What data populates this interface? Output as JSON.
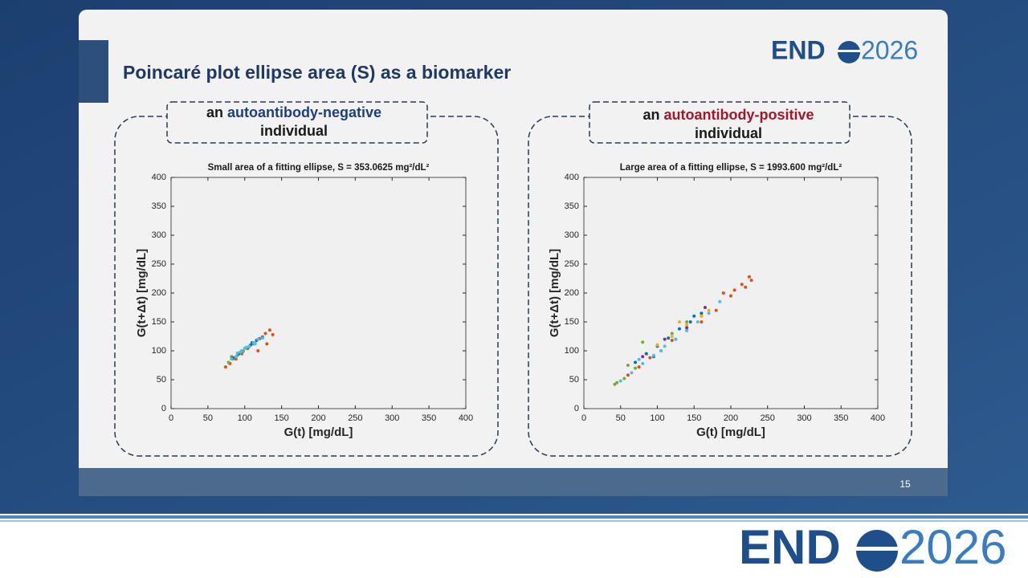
{
  "slide": {
    "title": "Poincaré plot ellipse area (S) as a biomarker",
    "page_number": "15",
    "logo_left": "END",
    "logo_right": "2026"
  },
  "panels": [
    {
      "prefix": "an",
      "highlight": "autoantibody-negative",
      "suffix": "individual",
      "highlight_color": "#1f3f7a"
    },
    {
      "prefix": "an",
      "highlight": "autoantibody-positive",
      "suffix": "individual",
      "highlight_color": "#a3172a"
    }
  ],
  "chart_data": [
    {
      "type": "scatter",
      "title": "Small area of a fitting ellipse, S = 353.0625 mg²/dL²",
      "x_label": "G(t) [mg/dL]",
      "y_label": "G(t+Δt) [mg/dL]",
      "xlim": [
        0,
        400
      ],
      "ylim": [
        0,
        400
      ],
      "xticks": [
        0,
        50,
        100,
        150,
        200,
        250,
        300,
        350,
        400
      ],
      "yticks": [
        0,
        50,
        100,
        150,
        200,
        250,
        300,
        350,
        400
      ],
      "grid": false,
      "series": [
        {
          "color": "#d95319",
          "x": [
            74,
            80,
            88,
            96,
            104,
            112,
            120,
            128,
            134,
            138,
            130,
            118
          ],
          "values": [
            72,
            78,
            86,
            95,
            104,
            112,
            121,
            130,
            136,
            128,
            112,
            100
          ]
        },
        {
          "color": "#77ac30",
          "x": [
            78,
            84,
            90,
            98,
            106,
            114,
            82,
            94
          ],
          "values": [
            80,
            86,
            92,
            99,
            107,
            113,
            90,
            96
          ]
        },
        {
          "color": "#0072bd",
          "x": [
            84,
            92,
            100,
            108,
            116,
            124,
            96,
            110
          ],
          "values": [
            88,
            95,
            104,
            110,
            118,
            124,
            100,
            114
          ]
        },
        {
          "color": "#4dbeee",
          "x": [
            82,
            88,
            94,
            100,
            106,
            112,
            118,
            124,
            90,
            102,
            114,
            96
          ],
          "values": [
            86,
            90,
            98,
            104,
            108,
            114,
            120,
            122,
            96,
            106,
            112,
            100
          ]
        }
      ]
    },
    {
      "type": "scatter",
      "title": "Large area of a fitting ellipse, S = 1993.600 mg²/dL²",
      "x_label": "G(t) [mg/dL]",
      "y_label": "G(t+Δt) [mg/dL]",
      "xlim": [
        0,
        400
      ],
      "ylim": [
        0,
        400
      ],
      "xticks": [
        0,
        50,
        100,
        150,
        200,
        250,
        300,
        350,
        400
      ],
      "yticks": [
        0,
        50,
        100,
        150,
        200,
        250,
        300,
        350,
        400
      ],
      "grid": false,
      "series": [
        {
          "color": "#d95319",
          "x": [
            60,
            75,
            90,
            105,
            120,
            140,
            160,
            180,
            200,
            215,
            225,
            228,
            220,
            205,
            190
          ],
          "values": [
            58,
            72,
            88,
            100,
            118,
            135,
            150,
            170,
            195,
            215,
            228,
            222,
            210,
            205,
            200
          ]
        },
        {
          "color": "#77ac30",
          "x": [
            42,
            45,
            55,
            70,
            85,
            100,
            120,
            140,
            160,
            60,
            80
          ],
          "values": [
            42,
            45,
            52,
            70,
            95,
            110,
            130,
            150,
            160,
            75,
            115
          ]
        },
        {
          "color": "#0072bd",
          "x": [
            70,
            85,
            100,
            115,
            130,
            145,
            160,
            95,
            125,
            150
          ],
          "values": [
            80,
            95,
            108,
            122,
            138,
            150,
            165,
            90,
            120,
            160
          ]
        },
        {
          "color": "#4dbeee",
          "x": [
            50,
            65,
            80,
            95,
            110,
            125,
            140,
            155,
            170,
            185,
            75,
            105
          ],
          "values": [
            48,
            62,
            78,
            92,
            108,
            120,
            135,
            150,
            165,
            185,
            85,
            100
          ]
        },
        {
          "color": "#edb120",
          "x": [
            100,
            120,
            140,
            160,
            170,
            130
          ],
          "values": [
            110,
            125,
            145,
            160,
            170,
            150
          ]
        },
        {
          "color": "#7e2f8e",
          "x": [
            80,
            110,
            140,
            165
          ],
          "values": [
            90,
            120,
            140,
            175
          ]
        }
      ]
    }
  ]
}
